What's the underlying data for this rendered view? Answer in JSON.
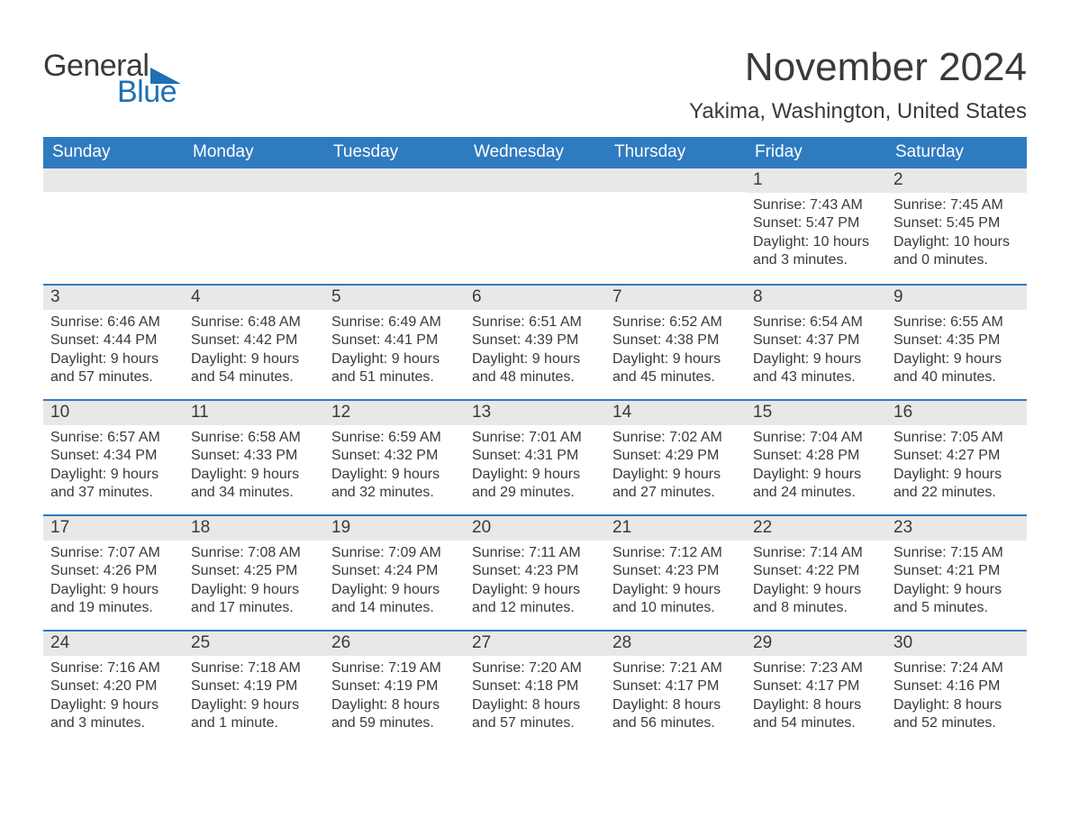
{
  "logo": {
    "text1": "General",
    "text2": "Blue",
    "shape_color": "#1f6fb2"
  },
  "title": "November 2024",
  "location": "Yakima, Washington, United States",
  "colors": {
    "header_bg": "#2f7bc0",
    "header_text": "#ffffff",
    "daynum_bg": "#e8e8e8",
    "text": "#3a3a3a",
    "row_border": "#2f7bc0",
    "background": "#ffffff",
    "logo_blue": "#1f6fb2"
  },
  "typography": {
    "title_fontsize": 44,
    "location_fontsize": 24,
    "weekday_fontsize": 19,
    "daynum_fontsize": 19,
    "body_fontsize": 16
  },
  "weekdays": [
    "Sunday",
    "Monday",
    "Tuesday",
    "Wednesday",
    "Thursday",
    "Friday",
    "Saturday"
  ],
  "weeks": [
    [
      {
        "day": "",
        "sunrise": "",
        "sunset": "",
        "daylight1": "",
        "daylight2": ""
      },
      {
        "day": "",
        "sunrise": "",
        "sunset": "",
        "daylight1": "",
        "daylight2": ""
      },
      {
        "day": "",
        "sunrise": "",
        "sunset": "",
        "daylight1": "",
        "daylight2": ""
      },
      {
        "day": "",
        "sunrise": "",
        "sunset": "",
        "daylight1": "",
        "daylight2": ""
      },
      {
        "day": "",
        "sunrise": "",
        "sunset": "",
        "daylight1": "",
        "daylight2": ""
      },
      {
        "day": "1",
        "sunrise": "Sunrise: 7:43 AM",
        "sunset": "Sunset: 5:47 PM",
        "daylight1": "Daylight: 10 hours",
        "daylight2": "and 3 minutes."
      },
      {
        "day": "2",
        "sunrise": "Sunrise: 7:45 AM",
        "sunset": "Sunset: 5:45 PM",
        "daylight1": "Daylight: 10 hours",
        "daylight2": "and 0 minutes."
      }
    ],
    [
      {
        "day": "3",
        "sunrise": "Sunrise: 6:46 AM",
        "sunset": "Sunset: 4:44 PM",
        "daylight1": "Daylight: 9 hours",
        "daylight2": "and 57 minutes."
      },
      {
        "day": "4",
        "sunrise": "Sunrise: 6:48 AM",
        "sunset": "Sunset: 4:42 PM",
        "daylight1": "Daylight: 9 hours",
        "daylight2": "and 54 minutes."
      },
      {
        "day": "5",
        "sunrise": "Sunrise: 6:49 AM",
        "sunset": "Sunset: 4:41 PM",
        "daylight1": "Daylight: 9 hours",
        "daylight2": "and 51 minutes."
      },
      {
        "day": "6",
        "sunrise": "Sunrise: 6:51 AM",
        "sunset": "Sunset: 4:39 PM",
        "daylight1": "Daylight: 9 hours",
        "daylight2": "and 48 minutes."
      },
      {
        "day": "7",
        "sunrise": "Sunrise: 6:52 AM",
        "sunset": "Sunset: 4:38 PM",
        "daylight1": "Daylight: 9 hours",
        "daylight2": "and 45 minutes."
      },
      {
        "day": "8",
        "sunrise": "Sunrise: 6:54 AM",
        "sunset": "Sunset: 4:37 PM",
        "daylight1": "Daylight: 9 hours",
        "daylight2": "and 43 minutes."
      },
      {
        "day": "9",
        "sunrise": "Sunrise: 6:55 AM",
        "sunset": "Sunset: 4:35 PM",
        "daylight1": "Daylight: 9 hours",
        "daylight2": "and 40 minutes."
      }
    ],
    [
      {
        "day": "10",
        "sunrise": "Sunrise: 6:57 AM",
        "sunset": "Sunset: 4:34 PM",
        "daylight1": "Daylight: 9 hours",
        "daylight2": "and 37 minutes."
      },
      {
        "day": "11",
        "sunrise": "Sunrise: 6:58 AM",
        "sunset": "Sunset: 4:33 PM",
        "daylight1": "Daylight: 9 hours",
        "daylight2": "and 34 minutes."
      },
      {
        "day": "12",
        "sunrise": "Sunrise: 6:59 AM",
        "sunset": "Sunset: 4:32 PM",
        "daylight1": "Daylight: 9 hours",
        "daylight2": "and 32 minutes."
      },
      {
        "day": "13",
        "sunrise": "Sunrise: 7:01 AM",
        "sunset": "Sunset: 4:31 PM",
        "daylight1": "Daylight: 9 hours",
        "daylight2": "and 29 minutes."
      },
      {
        "day": "14",
        "sunrise": "Sunrise: 7:02 AM",
        "sunset": "Sunset: 4:29 PM",
        "daylight1": "Daylight: 9 hours",
        "daylight2": "and 27 minutes."
      },
      {
        "day": "15",
        "sunrise": "Sunrise: 7:04 AM",
        "sunset": "Sunset: 4:28 PM",
        "daylight1": "Daylight: 9 hours",
        "daylight2": "and 24 minutes."
      },
      {
        "day": "16",
        "sunrise": "Sunrise: 7:05 AM",
        "sunset": "Sunset: 4:27 PM",
        "daylight1": "Daylight: 9 hours",
        "daylight2": "and 22 minutes."
      }
    ],
    [
      {
        "day": "17",
        "sunrise": "Sunrise: 7:07 AM",
        "sunset": "Sunset: 4:26 PM",
        "daylight1": "Daylight: 9 hours",
        "daylight2": "and 19 minutes."
      },
      {
        "day": "18",
        "sunrise": "Sunrise: 7:08 AM",
        "sunset": "Sunset: 4:25 PM",
        "daylight1": "Daylight: 9 hours",
        "daylight2": "and 17 minutes."
      },
      {
        "day": "19",
        "sunrise": "Sunrise: 7:09 AM",
        "sunset": "Sunset: 4:24 PM",
        "daylight1": "Daylight: 9 hours",
        "daylight2": "and 14 minutes."
      },
      {
        "day": "20",
        "sunrise": "Sunrise: 7:11 AM",
        "sunset": "Sunset: 4:23 PM",
        "daylight1": "Daylight: 9 hours",
        "daylight2": "and 12 minutes."
      },
      {
        "day": "21",
        "sunrise": "Sunrise: 7:12 AM",
        "sunset": "Sunset: 4:23 PM",
        "daylight1": "Daylight: 9 hours",
        "daylight2": "and 10 minutes."
      },
      {
        "day": "22",
        "sunrise": "Sunrise: 7:14 AM",
        "sunset": "Sunset: 4:22 PM",
        "daylight1": "Daylight: 9 hours",
        "daylight2": "and 8 minutes."
      },
      {
        "day": "23",
        "sunrise": "Sunrise: 7:15 AM",
        "sunset": "Sunset: 4:21 PM",
        "daylight1": "Daylight: 9 hours",
        "daylight2": "and 5 minutes."
      }
    ],
    [
      {
        "day": "24",
        "sunrise": "Sunrise: 7:16 AM",
        "sunset": "Sunset: 4:20 PM",
        "daylight1": "Daylight: 9 hours",
        "daylight2": "and 3 minutes."
      },
      {
        "day": "25",
        "sunrise": "Sunrise: 7:18 AM",
        "sunset": "Sunset: 4:19 PM",
        "daylight1": "Daylight: 9 hours",
        "daylight2": "and 1 minute."
      },
      {
        "day": "26",
        "sunrise": "Sunrise: 7:19 AM",
        "sunset": "Sunset: 4:19 PM",
        "daylight1": "Daylight: 8 hours",
        "daylight2": "and 59 minutes."
      },
      {
        "day": "27",
        "sunrise": "Sunrise: 7:20 AM",
        "sunset": "Sunset: 4:18 PM",
        "daylight1": "Daylight: 8 hours",
        "daylight2": "and 57 minutes."
      },
      {
        "day": "28",
        "sunrise": "Sunrise: 7:21 AM",
        "sunset": "Sunset: 4:17 PM",
        "daylight1": "Daylight: 8 hours",
        "daylight2": "and 56 minutes."
      },
      {
        "day": "29",
        "sunrise": "Sunrise: 7:23 AM",
        "sunset": "Sunset: 4:17 PM",
        "daylight1": "Daylight: 8 hours",
        "daylight2": "and 54 minutes."
      },
      {
        "day": "30",
        "sunrise": "Sunrise: 7:24 AM",
        "sunset": "Sunset: 4:16 PM",
        "daylight1": "Daylight: 8 hours",
        "daylight2": "and 52 minutes."
      }
    ]
  ]
}
